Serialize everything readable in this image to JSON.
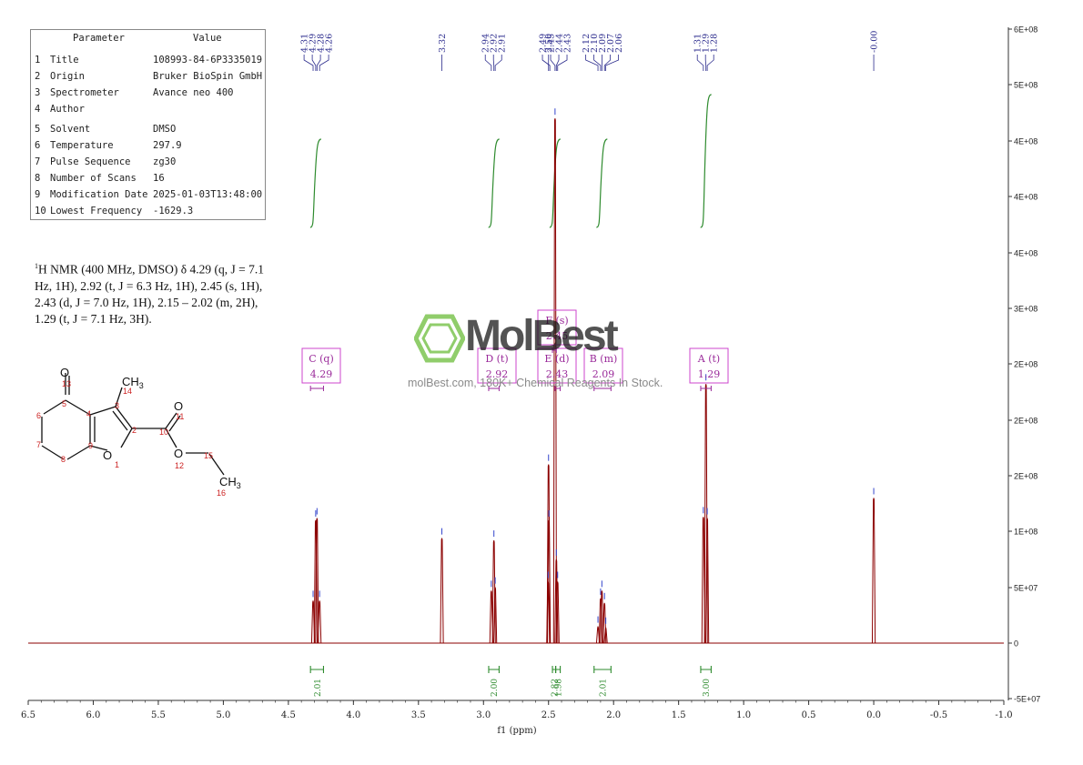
{
  "parameters": {
    "header": {
      "param": "Parameter",
      "value": "Value"
    },
    "rows": [
      {
        "n": "1",
        "name": "Title",
        "value": "108993-84-6P3335019"
      },
      {
        "n": "2",
        "name": "Origin",
        "value": "Bruker BioSpin GmbH"
      },
      {
        "n": "3",
        "name": "Spectrometer",
        "value": "Avance neo 400"
      },
      {
        "n": "4",
        "name": "Author",
        "value": ""
      },
      {
        "n": "5",
        "name": "Solvent",
        "value": "DMSO"
      },
      {
        "n": "6",
        "name": "Temperature",
        "value": "297.9"
      },
      {
        "n": "7",
        "name": "Pulse Sequence",
        "value": "zg30"
      },
      {
        "n": "8",
        "name": "Number of Scans",
        "value": "16"
      },
      {
        "n": "9",
        "name": "Modification Date",
        "value": "2025-01-03T13:48:00"
      },
      {
        "n": "10",
        "name": "Lowest Frequency",
        "value": "-1629.3"
      }
    ]
  },
  "nmr_description": {
    "sup": "1",
    "text": "H NMR (400 MHz, DMSO) δ 4.29 (q, J = 7.1 Hz, 1H), 2.92 (t, J = 6.3 Hz, 1H), 2.45 (s, 1H), 2.43 (d, J = 7.0 Hz, 1H), 2.15 – 2.02 (m, 2H), 1.29 (t, J = 7.1 Hz, 3H)."
  },
  "watermark": {
    "brand": "MolBest",
    "tagline": "molBest.com, 180K+ Chemical Reagents In Stock."
  },
  "molecule": {
    "atoms": [
      "13",
      "5",
      "6",
      "7",
      "8",
      "9",
      "4",
      "3",
      "14",
      "2",
      "1",
      "10",
      "11",
      "12",
      "15",
      "16"
    ],
    "labels": {
      "O": "O",
      "CH3": "CH",
      "sub": "3"
    }
  },
  "colors": {
    "spectrum": "#8b0000",
    "integral": "#2e8b2e",
    "peak_label": "#2a2a8c",
    "multiplet_box": "#cc44cc",
    "molecule_number": "#cc2222",
    "logo": "#66bb33"
  },
  "chart_data": {
    "type": "line",
    "xlabel": "f1 (ppm)",
    "xlim": [
      6.5,
      -1.0
    ],
    "ylim": [
      -50000000,
      600000000
    ],
    "x_ticks": [
      "6.5",
      "6.0",
      "5.5",
      "5.0",
      "4.5",
      "4.0",
      "3.5",
      "3.0",
      "2.5",
      "2.0",
      "1.5",
      "1.0",
      "0.5",
      "0.0",
      "-0.5",
      "-1.0"
    ],
    "y_ticks": [
      "6E+08",
      "5E+08",
      "4E+08",
      "4E+08",
      "4E+08",
      "3E+08",
      "2E+08",
      "2E+08",
      "2E+08",
      "1E+08",
      "5E+07",
      "0",
      "-5E+07"
    ],
    "peak_labels": [
      {
        "group": [
          4.31,
          4.29,
          4.28,
          4.26
        ],
        "labels": [
          "4.31",
          "4.29",
          "4.28",
          "4.26"
        ]
      },
      {
        "group": [
          3.32
        ],
        "labels": [
          "3.32"
        ]
      },
      {
        "group": [
          2.94,
          2.92,
          2.91
        ],
        "labels": [
          "2.94",
          "2.92",
          "2.91"
        ]
      },
      {
        "group": [
          2.5
        ],
        "labels": [
          "2.50"
        ]
      },
      {
        "group": [
          2.49,
          2.45,
          2.44,
          2.43
        ],
        "labels": [
          "2.49",
          "2.45",
          "2.44",
          "2.43"
        ]
      },
      {
        "group": [
          2.12,
          2.1,
          2.09,
          2.07,
          2.06
        ],
        "labels": [
          "2.12",
          "2.10",
          "2.09",
          "2.07",
          "2.06"
        ]
      },
      {
        "group": [
          1.31,
          1.29,
          1.28
        ],
        "labels": [
          "1.31",
          "1.29",
          "1.28"
        ]
      },
      {
        "group": [
          0.0
        ],
        "labels": [
          "-0.00"
        ]
      }
    ],
    "peaks": [
      {
        "x": 4.31,
        "y": 38000000
      },
      {
        "x": 4.29,
        "y": 110000000
      },
      {
        "x": 4.28,
        "y": 112000000
      },
      {
        "x": 4.26,
        "y": 38000000
      },
      {
        "x": 3.32,
        "y": 94000000
      },
      {
        "x": 2.94,
        "y": 47000000
      },
      {
        "x": 2.92,
        "y": 92000000
      },
      {
        "x": 2.91,
        "y": 50000000
      },
      {
        "x": 2.5,
        "y": 160000000
      },
      {
        "x": 2.497,
        "y": 110000000
      },
      {
        "x": 2.503,
        "y": 55000000
      },
      {
        "x": 2.45,
        "y": 470000000
      },
      {
        "x": 2.44,
        "y": 75000000
      },
      {
        "x": 2.43,
        "y": 55000000
      },
      {
        "x": 2.12,
        "y": 15000000
      },
      {
        "x": 2.1,
        "y": 40000000
      },
      {
        "x": 2.09,
        "y": 47000000
      },
      {
        "x": 2.07,
        "y": 36000000
      },
      {
        "x": 2.06,
        "y": 14000000
      },
      {
        "x": 1.31,
        "y": 113000000
      },
      {
        "x": 1.29,
        "y": 232000000
      },
      {
        "x": 1.28,
        "y": 112000000
      },
      {
        "x": 0.0,
        "y": 130000000
      }
    ],
    "multiplets": [
      {
        "letter": "C",
        "mult": "q",
        "shift": "4.29",
        "from": 4.33,
        "to": 4.23
      },
      {
        "letter": "D",
        "mult": "t",
        "shift": "2.92",
        "from": 2.96,
        "to": 2.88
      },
      {
        "letter": "F",
        "mult": "s",
        "shift": "2.45",
        "from": 2.47,
        "to": 2.44
      },
      {
        "letter": "E",
        "mult": "d",
        "shift": "2.43",
        "from": 2.45,
        "to": 2.41
      },
      {
        "letter": "B",
        "mult": "m",
        "shift": "2.09",
        "from": 2.15,
        "to": 2.02
      },
      {
        "letter": "A",
        "mult": "t",
        "shift": "1.29",
        "from": 1.33,
        "to": 1.25
      }
    ],
    "integrals": [
      {
        "from": 4.33,
        "to": 4.23,
        "value": "2.01"
      },
      {
        "from": 2.96,
        "to": 2.88,
        "value": "2.00"
      },
      {
        "from": 2.47,
        "to": 2.445,
        "value": "2.82"
      },
      {
        "from": 2.445,
        "to": 2.41,
        "value": "1.98"
      },
      {
        "from": 2.15,
        "to": 2.02,
        "value": "2.01"
      },
      {
        "from": 1.33,
        "to": 1.25,
        "value": "3.00"
      }
    ]
  }
}
